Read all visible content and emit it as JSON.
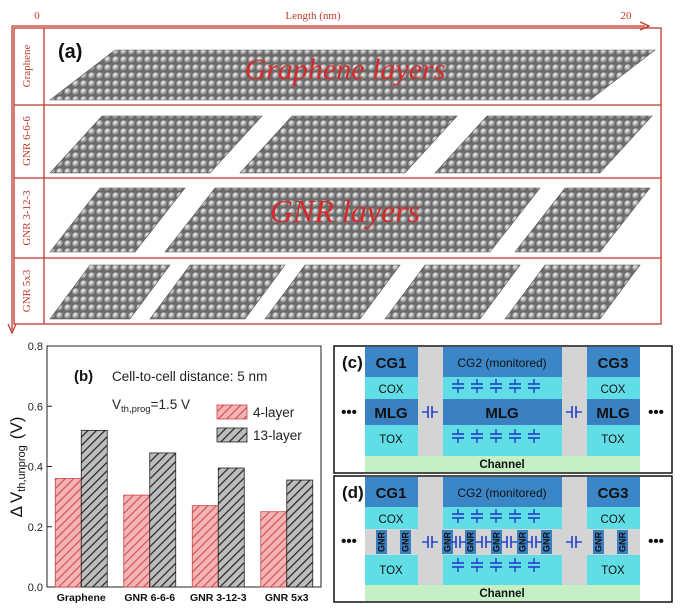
{
  "panel_a": {
    "label": "(a)",
    "top_axis": {
      "title": "Length (nm)",
      "tick_start": "0",
      "tick_end": "20"
    },
    "rows": [
      {
        "label": "Graphene",
        "overlay": "Graphene layers"
      },
      {
        "label": "GNR 6-6-6",
        "overlay": ""
      },
      {
        "label": "GNR 3-12-3",
        "overlay": "GNR layers"
      },
      {
        "label": "GNR 5x3",
        "overlay": ""
      }
    ],
    "colors": {
      "frame": "#c0392b",
      "atom": "#8a8a8a",
      "atom_highlight": "#d6d6d6",
      "overlay_text": "#d42a2a"
    }
  },
  "panel_b": {
    "label": "(b)",
    "annotation_distance": "Cell-to-cell distance: 5 nm",
    "annotation_vth_main": "V",
    "annotation_vth_sub": "th,prog",
    "annotation_vth_value": "=1.5 V",
    "ylabel_delta": "Δ",
    "ylabel_main": "V",
    "ylabel_sub": "th,unprog",
    "ylabel_unit": "(V)",
    "colors": {
      "series1": "#e46b6b",
      "series2": "#444444"
    }
  },
  "chart_data": {
    "type": "bar",
    "categories": [
      "Graphene",
      "GNR 6-6-6",
      "GNR 3-12-3",
      "GNR 5x3"
    ],
    "series": [
      {
        "name": "4-layer",
        "values": [
          0.36,
          0.305,
          0.27,
          0.25
        ]
      },
      {
        "name": "13-layer",
        "values": [
          0.52,
          0.445,
          0.395,
          0.355
        ]
      }
    ],
    "ylim": [
      0.0,
      0.8
    ],
    "yticks": [
      "0.0",
      "0.2",
      "0.4",
      "0.6",
      "0.8"
    ],
    "legend": "right",
    "grid": false
  },
  "panel_c": {
    "label": "(c)",
    "cg1": "CG1",
    "cg2": "CG2 (monitored)",
    "cg3": "CG3",
    "cox": "COX",
    "mlg": "MLG",
    "tox": "TOX",
    "channel": "Channel",
    "ellipsis": "•••"
  },
  "panel_d": {
    "label": "(d)",
    "cg1": "CG1",
    "cg2": "CG2 (monitored)",
    "cg3": "CG3",
    "cox": "COX",
    "gnr": "GNR",
    "tox": "TOX",
    "channel": "Channel",
    "ellipsis": "•••"
  },
  "device_colors": {
    "gate": "#3b86c6",
    "cox": "#61dde6",
    "mlg": "#3a7fc0",
    "tox": "#61dde6",
    "channel": "#c5efc5",
    "spacer": "#d4d4d4",
    "capacitor": "#1f3fc8",
    "text": "#111111"
  }
}
